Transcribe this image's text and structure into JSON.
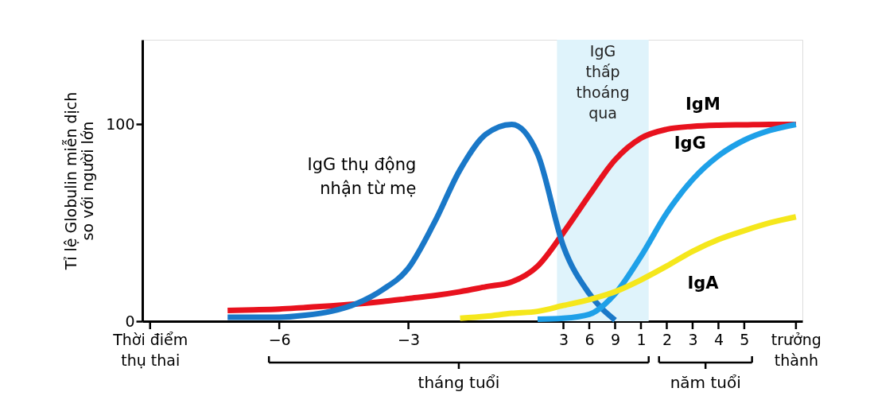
{
  "chart_data": {
    "type": "line",
    "ylabel": "Tỉ lệ Globulin miễn dịch\nso với người lớn",
    "categories": [
      "Thời điểm\nthụ thai",
      null,
      null,
      null,
      null,
      "−6",
      null,
      null,
      null,
      null,
      "−3",
      null,
      null,
      null,
      null,
      null,
      "3",
      "6",
      "9",
      "1",
      "2",
      "3",
      "4",
      "5",
      null,
      "trưởng\nthành"
    ],
    "ylim": [
      0,
      143
    ],
    "yticks": [
      0,
      100
    ],
    "grid": false,
    "series": [
      {
        "name": "IgM",
        "color": "#e8121e",
        "values": [
          null,
          null,
          null,
          5.5,
          5.8,
          6.2,
          7,
          7.8,
          8.8,
          10,
          11.5,
          13,
          15,
          17.5,
          20,
          28,
          45,
          64,
          82,
          93,
          97.5,
          99,
          99.6,
          99.8,
          100,
          100
        ]
      },
      {
        "name": "IgG thụ động\nnhận từ mẹ",
        "color": "#1a78c8",
        "values": [
          null,
          null,
          null,
          2,
          2,
          2,
          3,
          5,
          9,
          16,
          27,
          50,
          77,
          95,
          100,
          85,
          38,
          14,
          0.5,
          null,
          null,
          null,
          null,
          null,
          null,
          null
        ]
      },
      {
        "name": "IgG",
        "color": "#1ea0e8",
        "values": [
          null,
          null,
          null,
          null,
          null,
          null,
          null,
          null,
          null,
          null,
          null,
          null,
          null,
          null,
          null,
          1,
          1.5,
          3.5,
          14,
          33,
          55,
          72,
          84,
          92,
          97,
          100
        ]
      },
      {
        "name": "IgA",
        "color": "#f5e71c",
        "values": [
          null,
          null,
          null,
          null,
          null,
          null,
          null,
          null,
          null,
          null,
          null,
          null,
          1.5,
          2.5,
          4,
          5,
          8,
          11,
          15,
          21,
          28,
          35.5,
          41.5,
          46,
          50,
          53
        ]
      }
    ],
    "bands": [
      {
        "axis": "x",
        "from": "3",
        "to": "1",
        "label": "IgG\nthấp\nthoáng\nqua",
        "color": "#dff3fb"
      }
    ],
    "annotations": [
      "tháng tuổi",
      "năm tuổi"
    ],
    "line_style": "solid",
    "marker": "none"
  }
}
